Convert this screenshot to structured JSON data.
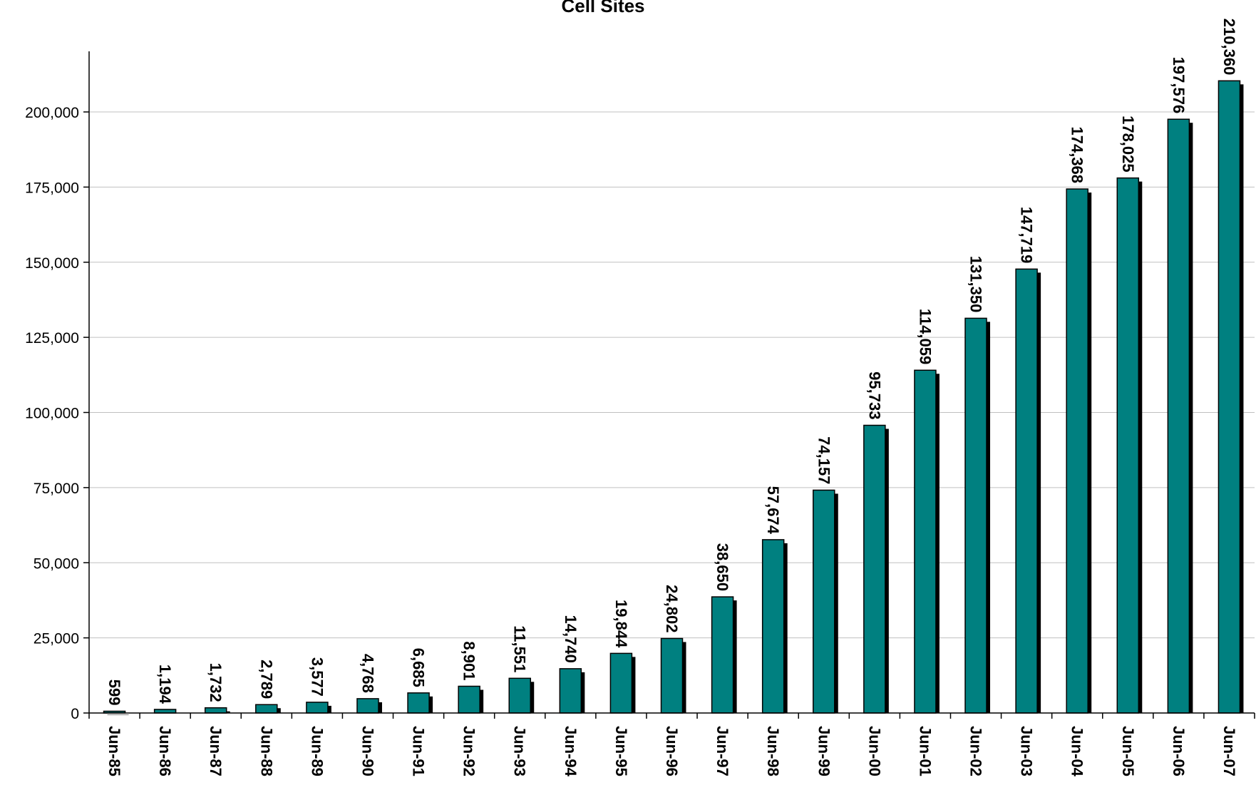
{
  "chart_data": {
    "type": "bar",
    "title": "Cell Sites",
    "xlabel": "",
    "ylabel": "",
    "ylim": [
      0,
      220000
    ],
    "yticks": [
      0,
      25000,
      50000,
      75000,
      100000,
      125000,
      150000,
      175000,
      200000
    ],
    "ytick_labels": [
      "0",
      "25,000",
      "50,000",
      "75,000",
      "100,000",
      "125,000",
      "150,000",
      "175,000",
      "200,000"
    ],
    "grid": true,
    "legend": "none",
    "categories": [
      "Jun-85",
      "Jun-86",
      "Jun-87",
      "Jun-88",
      "Jun-89",
      "Jun-90",
      "Jun-91",
      "Jun-92",
      "Jun-93",
      "Jun-94",
      "Jun-95",
      "Jun-96",
      "Jun-97",
      "Jun-98",
      "Jun-99",
      "Jun-00",
      "Jun-01",
      "Jun-02",
      "Jun-03",
      "Jun-04",
      "Jun-05",
      "Jun-06",
      "Jun-07"
    ],
    "values": [
      599,
      1194,
      1732,
      2789,
      3577,
      4768,
      6685,
      8901,
      11551,
      14740,
      19844,
      24802,
      38650,
      57674,
      74157,
      95733,
      114059,
      131350,
      147719,
      174368,
      178025,
      197576,
      210360
    ],
    "data_labels": [
      "599",
      "1,194",
      "1,732",
      "2,789",
      "3,577",
      "4,768",
      "6,685",
      "8,901",
      "11,551",
      "14,740",
      "19,844",
      "24,802",
      "38,650",
      "57,674",
      "74,157",
      "95,733",
      "114,059",
      "131,350",
      "147,719",
      "174,368",
      "178,025",
      "197,576",
      "210,360"
    ],
    "colors": {
      "bar": "#008080",
      "shadow": "#000000",
      "grid": "#c0c0c0",
      "axis": "#000000"
    }
  }
}
